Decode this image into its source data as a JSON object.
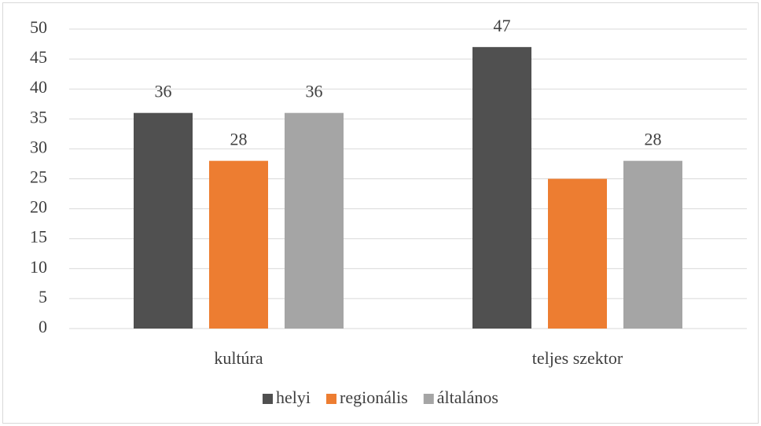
{
  "chart_data": {
    "type": "bar",
    "categories": [
      "kultúra",
      "teljes szektor"
    ],
    "series": [
      {
        "name": "helyi",
        "color": "#505050",
        "values": [
          36,
          47
        ],
        "value_labels": [
          "36",
          "47"
        ]
      },
      {
        "name": "regionális",
        "color": "#ed7d31",
        "values": [
          28,
          25
        ],
        "value_labels": [
          "28",
          null
        ]
      },
      {
        "name": "általános",
        "color": "#a5a5a5",
        "values": [
          36,
          28
        ],
        "value_labels": [
          "36",
          "28"
        ]
      }
    ],
    "ylim": [
      0,
      50
    ],
    "yticks": [
      0,
      5,
      10,
      15,
      20,
      25,
      30,
      35,
      40,
      45,
      50
    ],
    "grid": true,
    "legend": "bottom"
  }
}
